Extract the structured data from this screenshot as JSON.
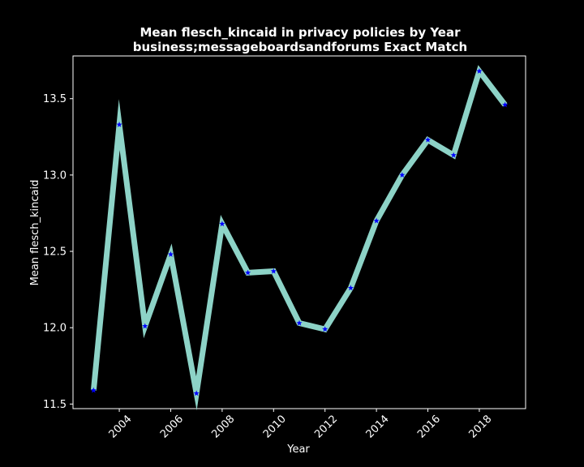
{
  "chart_data": {
    "type": "line",
    "title": "Mean flesch_kincaid in privacy policies by Year",
    "subtitle": "business;messageboardsandforums Exact Match",
    "xlabel": "Year",
    "ylabel": "Mean flesch_kincaid",
    "x": [
      2003,
      2004,
      2005,
      2006,
      2007,
      2008,
      2009,
      2010,
      2011,
      2012,
      2013,
      2014,
      2015,
      2016,
      2017,
      2018,
      2019
    ],
    "series": [
      {
        "values": [
          11.59,
          13.33,
          12.01,
          12.48,
          11.57,
          12.68,
          12.36,
          12.37,
          12.03,
          11.99,
          12.26,
          12.7,
          13.0,
          13.23,
          13.13,
          13.68,
          13.46
        ]
      }
    ],
    "xlim": [
      2002.2,
      2019.8
    ],
    "ylim": [
      11.47,
      13.78
    ],
    "xticks": [
      2004,
      2006,
      2008,
      2010,
      2012,
      2014,
      2016,
      2018
    ],
    "xtick_labels": [
      "2004",
      "2006",
      "2008",
      "2010",
      "2012",
      "2014",
      "2016",
      "2018"
    ],
    "yticks": [
      11.5,
      12.0,
      12.5,
      13.0,
      13.5
    ],
    "ytick_labels": [
      "11.5",
      "12.0",
      "12.5",
      "13.0",
      "13.5"
    ],
    "grid": false,
    "legend": "none",
    "colors": {
      "background": "#000000",
      "line": "#8dd3c7",
      "marker": "#0000ff",
      "text": "#ffffff",
      "axes": "#ffffff"
    }
  }
}
